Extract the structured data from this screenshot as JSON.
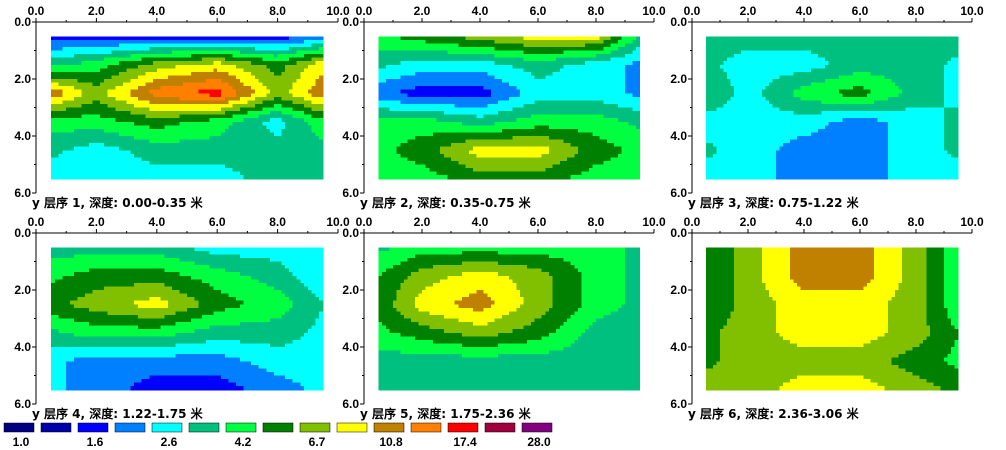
{
  "chart_data": {
    "type": "heatmap",
    "xlim": [
      0,
      10
    ],
    "ylim": [
      0,
      6
    ],
    "x_ticks": [
      "0.0",
      "2.0",
      "4.0",
      "6.0",
      "8.0",
      "10.0"
    ],
    "y_ticks": [
      "0.0",
      "2.0",
      "4.0",
      "6.0"
    ],
    "y_axis_letter": "y",
    "panels": [
      {
        "caption": "层序 1, 深度: 0.00-0.35 米",
        "x": [
          0,
          2,
          4,
          6,
          8,
          10
        ],
        "y": [
          0.5,
          1.5,
          2.5,
          3.5,
          4.5,
          5.5
        ],
        "values": [
          [
            2,
            2,
            2,
            2,
            2,
            3
          ],
          [
            5,
            6,
            8,
            9,
            7,
            10
          ],
          [
            11,
            8,
            11,
            12,
            8,
            11
          ],
          [
            6,
            6,
            7,
            6,
            4,
            7
          ],
          [
            5,
            4,
            5,
            5,
            5,
            5
          ],
          [
            4,
            4,
            4,
            4,
            5,
            5
          ]
        ]
      },
      {
        "caption": "层序 2, 深度: 0.35-0.75 米",
        "x": [
          0,
          2,
          4,
          6,
          8,
          10
        ],
        "y": [
          0.5,
          1.5,
          2.5,
          3.5,
          4.5,
          5.5
        ],
        "values": [
          [
            6,
            7,
            8,
            9,
            9,
            4
          ],
          [
            5,
            4,
            4,
            5,
            4,
            3
          ],
          [
            3,
            2,
            2,
            4,
            4,
            3
          ],
          [
            6,
            6,
            5,
            6,
            6,
            5
          ],
          [
            6,
            7,
            9,
            9,
            7,
            6
          ],
          [
            6,
            6,
            7,
            7,
            6,
            6
          ]
        ]
      },
      {
        "caption": "层序 3, 深度: 0.75-1.22 米",
        "x": [
          0,
          2,
          4,
          6,
          8,
          10
        ],
        "y": [
          0.5,
          1.5,
          2.5,
          3.5,
          4.5,
          5.5
        ],
        "values": [
          [
            5,
            5,
            5,
            5,
            5,
            5
          ],
          [
            5,
            4,
            4,
            5,
            5,
            4
          ],
          [
            6,
            4,
            6,
            7,
            5,
            4
          ],
          [
            4,
            4,
            4,
            3,
            4,
            5
          ],
          [
            5,
            4,
            3,
            3,
            4,
            5
          ],
          [
            4,
            4,
            3,
            3,
            4,
            4
          ]
        ]
      },
      {
        "caption": "层序 4, 深度: 1.22-1.75 米",
        "x": [
          0,
          2,
          4,
          6,
          8,
          10
        ],
        "y": [
          0.5,
          1.5,
          2.5,
          3.5,
          4.5,
          5.5
        ],
        "values": [
          [
            5,
            5,
            5,
            4,
            4,
            4
          ],
          [
            6,
            7,
            7,
            6,
            5,
            3
          ],
          [
            7,
            8,
            9,
            7,
            6,
            4
          ],
          [
            5,
            6,
            6,
            5,
            5,
            4
          ],
          [
            4,
            3,
            3,
            3,
            4,
            4
          ],
          [
            4,
            3,
            2,
            2,
            3,
            4
          ]
        ]
      },
      {
        "caption": "层序 5, 深度: 1.75-2.36 米",
        "x": [
          0,
          2,
          4,
          6,
          8,
          10
        ],
        "y": [
          0.5,
          1.5,
          2.5,
          3.5,
          4.5,
          5.5
        ],
        "values": [
          [
            5,
            6,
            6,
            6,
            6,
            5
          ],
          [
            6,
            8,
            9,
            8,
            6,
            5
          ],
          [
            6,
            9,
            10,
            8,
            6,
            5
          ],
          [
            6,
            7,
            8,
            7,
            5,
            5
          ],
          [
            5,
            5,
            5,
            5,
            5,
            5
          ],
          [
            5,
            5,
            5,
            5,
            5,
            5
          ]
        ]
      },
      {
        "caption": "层序 6, 深度: 2.36-3.06 米",
        "x": [
          0,
          2,
          4,
          6,
          8,
          10
        ],
        "y": [
          0.5,
          1.5,
          2.5,
          3.5,
          4.5,
          5.5
        ],
        "values": [
          [
            6,
            8,
            10,
            10,
            8,
            5
          ],
          [
            6,
            8,
            10,
            10,
            8,
            5
          ],
          [
            6,
            8,
            9,
            9,
            8,
            5
          ],
          [
            7,
            8,
            9,
            9,
            8,
            6
          ],
          [
            7,
            8,
            8,
            8,
            7,
            6
          ],
          [
            8,
            8,
            9,
            9,
            8,
            7
          ]
        ]
      }
    ],
    "legend": {
      "colors": [
        "#000080",
        "#0000a8",
        "#0000ff",
        "#0080ff",
        "#00ffff",
        "#00c080",
        "#00ff40",
        "#008000",
        "#80c000",
        "#ffff00",
        "#c08000",
        "#ff8000",
        "#ff0000",
        "#a00040",
        "#800080"
      ],
      "labels": [
        "1.0",
        "1.6",
        "2.6",
        "4.2",
        "6.7",
        "10.8",
        "17.4",
        "28.0"
      ]
    }
  }
}
